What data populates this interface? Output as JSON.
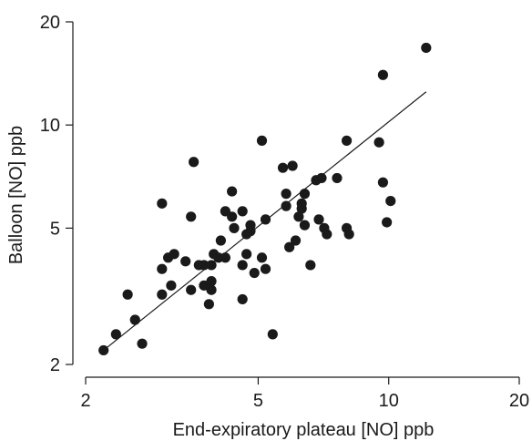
{
  "chart_data": {
    "type": "scatter",
    "title": "",
    "xlabel": "End-expiratory plateau [NO] ppb",
    "ylabel": "Balloon [NO] ppb",
    "xscale": "log",
    "yscale": "log",
    "xlim": [
      2,
      20
    ],
    "ylim": [
      2,
      20
    ],
    "xticks": [
      2,
      5,
      10,
      20
    ],
    "yticks": [
      2,
      5,
      10,
      20
    ],
    "xtick_labels": [
      "2",
      "5",
      "10",
      "20"
    ],
    "ytick_labels": [
      "2",
      "5",
      "10",
      "20"
    ],
    "grid": false,
    "legend": "none",
    "marker_color": "#1a1a1a",
    "fit_line": {
      "x": [
        2.2,
        12.2
      ],
      "y": [
        2.2,
        12.5
      ]
    },
    "points": [
      [
        2.2,
        2.2
      ],
      [
        2.35,
        2.45
      ],
      [
        2.5,
        3.2
      ],
      [
        2.6,
        2.7
      ],
      [
        2.7,
        2.3
      ],
      [
        3.0,
        5.9
      ],
      [
        3.0,
        3.8
      ],
      [
        3.0,
        3.2
      ],
      [
        3.1,
        4.1
      ],
      [
        3.15,
        3.4
      ],
      [
        3.2,
        4.2
      ],
      [
        3.4,
        4.0
      ],
      [
        3.5,
        5.4
      ],
      [
        3.5,
        3.3
      ],
      [
        3.55,
        7.8
      ],
      [
        3.65,
        3.9
      ],
      [
        3.75,
        3.9
      ],
      [
        3.75,
        3.4
      ],
      [
        3.85,
        3.0
      ],
      [
        3.9,
        3.5
      ],
      [
        3.9,
        3.3
      ],
      [
        3.9,
        3.9
      ],
      [
        3.95,
        4.2
      ],
      [
        4.05,
        4.1
      ],
      [
        4.1,
        4.6
      ],
      [
        4.2,
        4.1
      ],
      [
        4.2,
        5.6
      ],
      [
        4.35,
        6.4
      ],
      [
        4.35,
        5.4
      ],
      [
        4.4,
        5.0
      ],
      [
        4.6,
        3.9
      ],
      [
        4.6,
        3.1
      ],
      [
        4.6,
        5.6
      ],
      [
        4.7,
        4.8
      ],
      [
        4.7,
        4.2
      ],
      [
        4.8,
        4.9
      ],
      [
        4.8,
        5.1
      ],
      [
        4.9,
        3.7
      ],
      [
        5.1,
        9.0
      ],
      [
        5.1,
        4.1
      ],
      [
        5.2,
        5.3
      ],
      [
        5.2,
        3.8
      ],
      [
        5.4,
        2.45
      ],
      [
        5.7,
        7.5
      ],
      [
        5.8,
        5.8
      ],
      [
        5.8,
        6.3
      ],
      [
        5.9,
        4.4
      ],
      [
        6.0,
        7.6
      ],
      [
        6.1,
        4.6
      ],
      [
        6.2,
        5.4
      ],
      [
        6.3,
        5.7
      ],
      [
        6.3,
        5.9
      ],
      [
        6.4,
        6.3
      ],
      [
        6.4,
        5.1
      ],
      [
        6.6,
        3.9
      ],
      [
        6.8,
        6.9
      ],
      [
        6.9,
        5.3
      ],
      [
        7.0,
        7.0
      ],
      [
        7.1,
        5.0
      ],
      [
        7.2,
        4.8
      ],
      [
        7.6,
        7.0
      ],
      [
        8.0,
        9.0
      ],
      [
        8.0,
        5.0
      ],
      [
        8.1,
        4.8
      ],
      [
        9.5,
        8.9
      ],
      [
        9.7,
        14.0
      ],
      [
        9.7,
        6.8
      ],
      [
        9.9,
        5.2
      ],
      [
        10.1,
        6.0
      ],
      [
        12.2,
        16.8
      ]
    ]
  }
}
